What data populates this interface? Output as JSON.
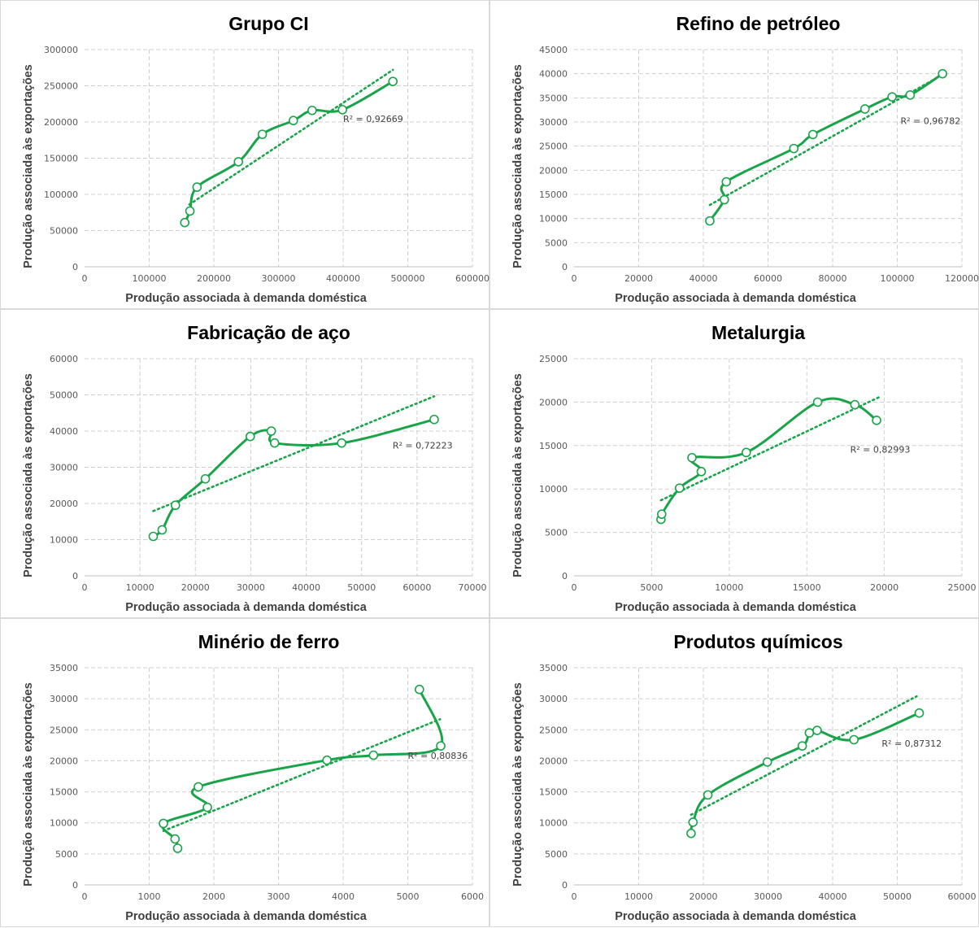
{
  "chart_data": [
    {
      "type": "scatter",
      "title": "Grupo CI",
      "xlabel": "Produção  associada à demanda  doméstica",
      "ylabel": "Produção  associada às exportações",
      "xlim": [
        0,
        600000
      ],
      "ylim": [
        0,
        300000
      ],
      "xticks": [
        "0",
        "100000",
        "200000",
        "300000",
        "400000",
        "500000",
        "600000"
      ],
      "yticks": [
        "0",
        "50000",
        "100000",
        "150000",
        "200000",
        "250000",
        "300000"
      ],
      "points": [
        [
          155000,
          61000
        ],
        [
          163000,
          77000
        ],
        [
          174000,
          110000
        ],
        [
          238000,
          145000
        ],
        [
          275000,
          183000
        ],
        [
          323000,
          202000
        ],
        [
          352000,
          216000
        ],
        [
          399000,
          217000
        ],
        [
          477000,
          256000
        ]
      ],
      "trendline": [
        [
          162000,
          86000
        ],
        [
          477000,
          272000
        ]
      ],
      "r2_label": "R² = 0,92669",
      "r2_pos": [
        400000,
        200000
      ]
    },
    {
      "type": "scatter",
      "title": "Refino de petróleo",
      "xlabel": "Produção  associada à demanda  doméstica",
      "ylabel": "Produção  associada às exportações",
      "xlim": [
        0,
        120000
      ],
      "ylim": [
        0,
        45000
      ],
      "xticks": [
        "0",
        "20000",
        "40000",
        "60000",
        "80000",
        "100000",
        "120000"
      ],
      "yticks": [
        "0",
        "5000",
        "10000",
        "15000",
        "20000",
        "25000",
        "30000",
        "35000",
        "40000",
        "45000"
      ],
      "points": [
        [
          42000,
          9500
        ],
        [
          46500,
          13900
        ],
        [
          47100,
          17600
        ],
        [
          68000,
          24500
        ],
        [
          73900,
          27400
        ],
        [
          90000,
          32700
        ],
        [
          98400,
          35200
        ],
        [
          104000,
          35600
        ],
        [
          114000,
          40000
        ]
      ],
      "trendline": [
        [
          42000,
          12800
        ],
        [
          114000,
          39800
        ]
      ],
      "r2_label": "R² = 0,96782",
      "r2_pos": [
        101000,
        29600
      ]
    },
    {
      "type": "scatter",
      "title": "Fabricação de aço",
      "xlabel": "Produção  associada à demanda  doméstica",
      "ylabel": "Produção  associada às exportações",
      "xlim": [
        0,
        70000
      ],
      "ylim": [
        0,
        60000
      ],
      "xticks": [
        "0",
        "10000",
        "20000",
        "30000",
        "40000",
        "50000",
        "60000",
        "70000"
      ],
      "yticks": [
        "0",
        "10000",
        "20000",
        "30000",
        "40000",
        "50000",
        "60000"
      ],
      "points": [
        [
          12400,
          10900
        ],
        [
          14000,
          12700
        ],
        [
          16400,
          19500
        ],
        [
          21800,
          26800
        ],
        [
          29900,
          38500
        ],
        [
          33700,
          40000
        ],
        [
          34300,
          36700
        ],
        [
          46400,
          36700
        ],
        [
          63100,
          43200
        ]
      ],
      "trendline": [
        [
          12400,
          17900
        ],
        [
          63100,
          49600
        ]
      ],
      "r2_label": "R² = 0,72223",
      "r2_pos": [
        55600,
        35200
      ]
    },
    {
      "type": "scatter",
      "title": "Metalurgia",
      "xlabel": "Produção  associada à demanda  doméstica",
      "ylabel": "Produção  associada às exportações",
      "xlim": [
        0,
        25000
      ],
      "ylim": [
        0,
        25000
      ],
      "xticks": [
        "0",
        "5000",
        "10000",
        "15000",
        "20000",
        "25000"
      ],
      "yticks": [
        "0",
        "5000",
        "10000",
        "15000",
        "20000",
        "25000"
      ],
      "points": [
        [
          5600,
          6500
        ],
        [
          5650,
          7100
        ],
        [
          6800,
          10100
        ],
        [
          8200,
          12000
        ],
        [
          7600,
          13600
        ],
        [
          11100,
          14200
        ],
        [
          15700,
          20000
        ],
        [
          18100,
          19700
        ],
        [
          19500,
          17900
        ]
      ],
      "trendline": [
        [
          5600,
          8700
        ],
        [
          19700,
          20600
        ]
      ],
      "r2_label": "R² = 0,82993",
      "r2_pos": [
        17800,
        14200
      ]
    },
    {
      "type": "scatter",
      "title": "Minério de ferro",
      "xlabel": "Produção  associada à demanda  doméstica",
      "ylabel": "Produção  associada às exportações",
      "xlim": [
        0,
        6000
      ],
      "ylim": [
        0,
        35000
      ],
      "xticks": [
        "0",
        "1000",
        "2000",
        "3000",
        "4000",
        "5000",
        "6000"
      ],
      "yticks": [
        "0",
        "5000",
        "10000",
        "15000",
        "20000",
        "25000",
        "30000",
        "35000"
      ],
      "points": [
        [
          1440,
          5900
        ],
        [
          1400,
          7400
        ],
        [
          1220,
          9900
        ],
        [
          1900,
          12500
        ],
        [
          1760,
          15800
        ],
        [
          3750,
          20100
        ],
        [
          4470,
          20900
        ],
        [
          5510,
          22400
        ],
        [
          5180,
          31500
        ]
      ],
      "trendline": [
        [
          1220,
          8700
        ],
        [
          5500,
          26700
        ]
      ],
      "r2_label": "R² = 0,80836",
      "r2_pos": [
        5000,
        20300
      ]
    },
    {
      "type": "scatter",
      "title": "Produtos químicos",
      "xlabel": "Produção  associada à demanda  doméstica",
      "ylabel": "Produção  associada às exportações",
      "xlim": [
        0,
        60000
      ],
      "ylim": [
        0,
        35000
      ],
      "xticks": [
        "0",
        "10000",
        "20000",
        "30000",
        "40000",
        "50000",
        "60000"
      ],
      "yticks": [
        "0",
        "5000",
        "10000",
        "15000",
        "20000",
        "25000",
        "30000",
        "35000"
      ],
      "points": [
        [
          18100,
          8300
        ],
        [
          18400,
          10100
        ],
        [
          20700,
          14500
        ],
        [
          29900,
          19800
        ],
        [
          35300,
          22400
        ],
        [
          36400,
          24500
        ],
        [
          37600,
          24900
        ],
        [
          43300,
          23400
        ],
        [
          53400,
          27700
        ]
      ],
      "trendline": [
        [
          18100,
          11300
        ],
        [
          53000,
          30400
        ]
      ],
      "r2_label": "R² = 0,87312",
      "r2_pos": [
        47600,
        22300
      ]
    }
  ],
  "colors": {
    "series": "#1aa44a",
    "grid": "#cfcfcf",
    "border": "#d9d9d9"
  }
}
